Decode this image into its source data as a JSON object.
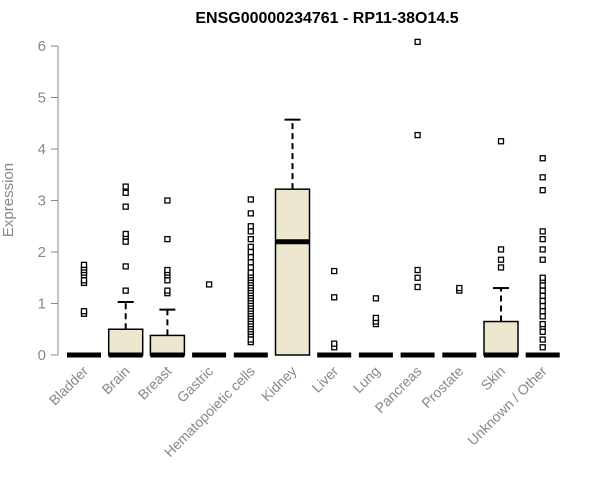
{
  "chart_data": {
    "type": "box",
    "title": "ENSG00000234761 - RP11-38O14.5",
    "xlabel": "",
    "ylabel": "Expression",
    "ylim": [
      0,
      6
    ],
    "yticks": [
      "0",
      "1",
      "2",
      "3",
      "4",
      "5",
      "6"
    ],
    "grid": false,
    "box_color": "#ede7cf",
    "categories": [
      "Bladder",
      "Brain",
      "Breast",
      "Gastric",
      "Hematopoietic cells",
      "Kidney",
      "Liver",
      "Lung",
      "Pancreas",
      "Prostate",
      "Skin",
      "Unknown / Other"
    ],
    "boxes": [
      {
        "q1": 0,
        "median": 0,
        "q3": 0,
        "whisker_low": 0,
        "whisker_high": 0,
        "outliers": [
          0.8,
          0.85,
          1.4,
          1.45,
          1.55,
          1.6,
          1.65,
          1.7,
          1.75
        ]
      },
      {
        "q1": 0,
        "median": 0,
        "q3": 0.5,
        "whisker_low": 0,
        "whisker_high": 1.03,
        "outliers": [
          1.25,
          1.72,
          2.2,
          2.3,
          2.35,
          2.88,
          3.15,
          3.27
        ]
      },
      {
        "q1": 0,
        "median": 0,
        "q3": 0.38,
        "whisker_low": 0,
        "whisker_high": 0.88,
        "outliers": [
          1.2,
          1.25,
          1.45,
          1.55,
          1.6,
          1.65,
          2.25,
          3.0
        ]
      },
      {
        "q1": 0,
        "median": 0,
        "q3": 0,
        "whisker_low": 0,
        "whisker_high": 0,
        "outliers": [
          1.37
        ]
      },
      {
        "q1": 0,
        "median": 0,
        "q3": 0,
        "whisker_low": 0,
        "whisker_high": 0,
        "outliers": [
          0.25,
          0.3,
          0.4,
          0.45,
          0.5,
          0.55,
          0.6,
          0.65,
          0.7,
          0.75,
          0.8,
          0.85,
          0.9,
          0.95,
          1.0,
          1.05,
          1.1,
          1.15,
          1.2,
          1.25,
          1.3,
          1.35,
          1.4,
          1.45,
          1.5,
          1.55,
          1.6,
          1.7,
          1.8,
          1.9,
          2.0,
          2.1,
          2.25,
          2.4,
          2.5,
          2.75,
          3.02
        ]
      },
      {
        "q1": 0,
        "median": 2.2,
        "q3": 3.22,
        "whisker_low": 0,
        "whisker_high": 4.57,
        "outliers": []
      },
      {
        "q1": 0,
        "median": 0,
        "q3": 0,
        "whisker_low": 0,
        "whisker_high": 0,
        "outliers": [
          0.15,
          0.22,
          1.12,
          1.63
        ]
      },
      {
        "q1": 0,
        "median": 0,
        "q3": 0,
        "whisker_low": 0,
        "whisker_high": 0,
        "outliers": [
          0.6,
          0.65,
          0.72,
          1.1
        ]
      },
      {
        "q1": 0,
        "median": 0,
        "q3": 0,
        "whisker_low": 0,
        "whisker_high": 0,
        "outliers": [
          1.32,
          1.5,
          1.65,
          4.27,
          6.08
        ]
      },
      {
        "q1": 0,
        "median": 0,
        "q3": 0,
        "whisker_low": 0,
        "whisker_high": 0,
        "outliers": [
          1.25,
          1.3
        ]
      },
      {
        "q1": 0,
        "median": 0,
        "q3": 0.65,
        "whisker_low": 0,
        "whisker_high": 1.3,
        "outliers": [
          1.7,
          1.85,
          2.05,
          4.15
        ]
      },
      {
        "q1": 0,
        "median": 0,
        "q3": 0,
        "whisker_low": 0,
        "whisker_high": 0,
        "outliers": [
          0.15,
          0.3,
          0.45,
          0.55,
          0.6,
          0.75,
          0.85,
          0.95,
          1.05,
          1.15,
          1.25,
          1.35,
          1.45,
          1.5,
          1.85,
          2.05,
          2.25,
          2.4,
          3.2,
          3.45,
          3.82
        ]
      }
    ]
  }
}
